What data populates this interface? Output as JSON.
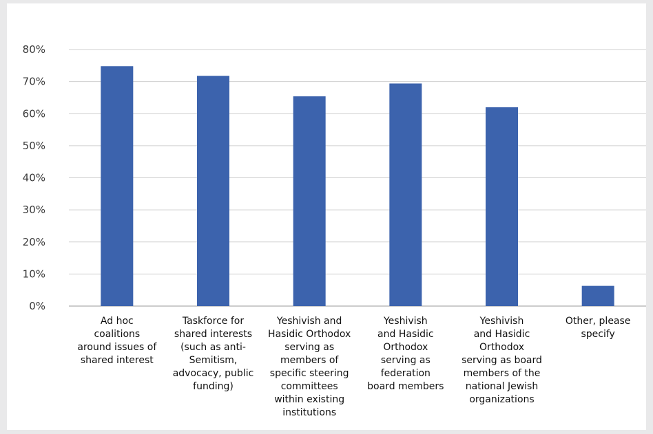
{
  "chart_data": {
    "type": "bar",
    "title": "",
    "xlabel": "",
    "ylabel": "",
    "ylim": [
      0,
      80
    ],
    "y_ticks": [
      "0%",
      "10%",
      "20%",
      "30%",
      "40%",
      "50%",
      "60%",
      "70%",
      "80%"
    ],
    "y_tick_values": [
      0,
      10,
      20,
      30,
      40,
      50,
      60,
      70,
      80
    ],
    "grid": true,
    "bar_color": "#3c63ad",
    "categories": [
      [
        "Ad hoc",
        "coalitions",
        "around issues of",
        "shared interest"
      ],
      [
        "Taskforce for",
        "shared interests",
        "(such as anti-",
        "Semitism,",
        "advocacy, public",
        "funding)"
      ],
      [
        "Yeshivish and",
        "Hasidic Orthodox",
        "serving as",
        "members of",
        "specific steering",
        "committees",
        "within existing",
        "institutions"
      ],
      [
        "Yeshivish",
        "and Hasidic",
        "Orthodox",
        "serving as",
        "federation",
        "board members"
      ],
      [
        "Yeshivish",
        "and Hasidic",
        "Orthodox",
        "serving as board",
        "members of the",
        "national Jewish",
        "organizations"
      ],
      [
        "Other, please",
        "specify"
      ]
    ],
    "values": [
      74.8,
      71.8,
      65.4,
      69.4,
      62.0,
      6.3
    ]
  }
}
